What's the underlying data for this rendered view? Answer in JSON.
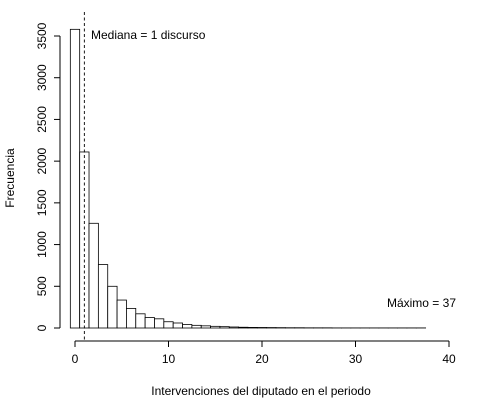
{
  "chart_data": {
    "type": "bar",
    "xlabel": "Intervenciones del diputado en el periodo",
    "ylabel": "Frecuencia",
    "x_ticks": [
      0,
      10,
      20,
      30,
      40
    ],
    "y_ticks": [
      0,
      500,
      1000,
      1500,
      2000,
      2500,
      3000,
      3500
    ],
    "xlim": [
      -0.5,
      40
    ],
    "ylim": [
      0,
      3580
    ],
    "bin_width": 1,
    "bins": [
      {
        "start": -0.5,
        "value": 3580
      },
      {
        "start": 0.5,
        "value": 2110
      },
      {
        "start": 1.5,
        "value": 1255
      },
      {
        "start": 2.5,
        "value": 760
      },
      {
        "start": 3.5,
        "value": 500
      },
      {
        "start": 4.5,
        "value": 335
      },
      {
        "start": 5.5,
        "value": 235
      },
      {
        "start": 6.5,
        "value": 170
      },
      {
        "start": 7.5,
        "value": 125
      },
      {
        "start": 8.5,
        "value": 110
      },
      {
        "start": 9.5,
        "value": 75
      },
      {
        "start": 10.5,
        "value": 60
      },
      {
        "start": 11.5,
        "value": 42
      },
      {
        "start": 12.5,
        "value": 32
      },
      {
        "start": 13.5,
        "value": 26
      },
      {
        "start": 14.5,
        "value": 20
      },
      {
        "start": 15.5,
        "value": 16
      },
      {
        "start": 16.5,
        "value": 12
      },
      {
        "start": 17.5,
        "value": 9
      },
      {
        "start": 18.5,
        "value": 7
      },
      {
        "start": 19.5,
        "value": 6
      },
      {
        "start": 20.5,
        "value": 5
      },
      {
        "start": 21.5,
        "value": 4
      },
      {
        "start": 22.5,
        "value": 3
      },
      {
        "start": 23.5,
        "value": 3
      },
      {
        "start": 24.5,
        "value": 2
      },
      {
        "start": 25.5,
        "value": 2
      },
      {
        "start": 26.5,
        "value": 2
      },
      {
        "start": 27.5,
        "value": 1
      },
      {
        "start": 28.5,
        "value": 1
      },
      {
        "start": 29.5,
        "value": 1
      },
      {
        "start": 30.5,
        "value": 1
      },
      {
        "start": 31.5,
        "value": 1
      },
      {
        "start": 32.5,
        "value": 1
      },
      {
        "start": 33.5,
        "value": 1
      },
      {
        "start": 34.5,
        "value": 1
      },
      {
        "start": 35.5,
        "value": 1
      },
      {
        "start": 36.5,
        "value": 1
      }
    ],
    "median": 1,
    "annotations": {
      "median_label": "Mediana = 1 discurso",
      "max_label": "Máximo = 37"
    },
    "grid": false,
    "legend": "none"
  }
}
